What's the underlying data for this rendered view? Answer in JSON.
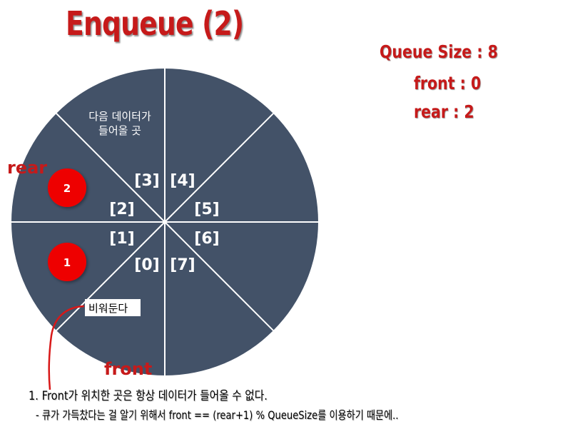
{
  "title": "Enqueue (2)",
  "info": {
    "queue_size_label": "Queue Size : ",
    "queue_size": "8",
    "front_label": "front : ",
    "front": "0",
    "rear_label": "rear : ",
    "rear": "2"
  },
  "colors": {
    "accent": "#c61a1a",
    "circle_fill": "#435268",
    "divider": "#ffffff",
    "marker_fill": "#ee0000"
  },
  "queue": {
    "slots": [
      "[0]",
      "[1]",
      "[2]",
      "[3]",
      "[4]",
      "[5]",
      "[6]",
      "[7]"
    ],
    "next_slot_note_line1": "다음 데이터가",
    "next_slot_note_line2": "들어올 곳",
    "empty_slot_label": "비워둔다",
    "rear_label": "rear",
    "front_label": "front",
    "markers": [
      {
        "slot": 1,
        "label": "1"
      },
      {
        "slot": 2,
        "label": "2"
      }
    ]
  },
  "notes": {
    "line1": "1. Front가 위치한 곳은 항상 데이터가 들어올 수 없다.",
    "line2": "- 큐가 가득찼다는 걸 알기 위해서 front == (rear+1) % QueueSize를 이용하기 때문에.."
  }
}
